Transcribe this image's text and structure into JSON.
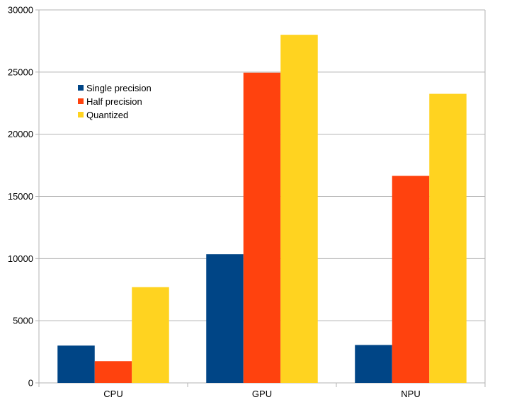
{
  "chart_data": {
    "type": "bar",
    "categories": [
      "CPU",
      "GPU",
      "NPU"
    ],
    "series": [
      {
        "name": "Single precision",
        "color": "#004586",
        "values": [
          3000,
          10350,
          3050
        ]
      },
      {
        "name": "Half precision",
        "color": "#ff420e",
        "values": [
          1750,
          24950,
          16650
        ]
      },
      {
        "name": "Quantized",
        "color": "#ffd320",
        "values": [
          7700,
          28000,
          23250
        ]
      }
    ],
    "ylim": [
      0,
      30000
    ],
    "yticks": [
      0,
      5000,
      10000,
      15000,
      20000,
      25000,
      30000
    ],
    "grid": true,
    "legend_position": "top-left"
  }
}
